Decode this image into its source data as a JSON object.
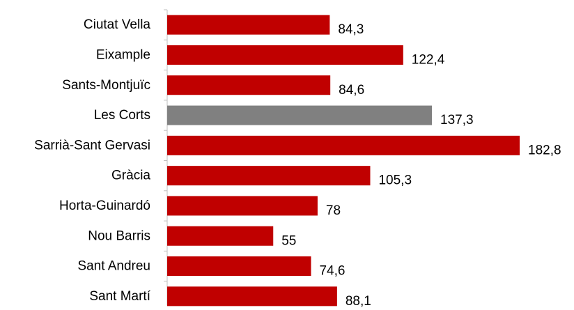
{
  "chart_data": {
    "type": "bar",
    "orientation": "horizontal",
    "categories": [
      "Ciutat Vella",
      "Eixample",
      "Sants-Montjuïc",
      "Les Corts",
      "Sarrià-Sant Gervasi",
      "Gràcia",
      "Horta-Guinardó",
      "Nou Barris",
      "Sant Andreu",
      "Sant Martí"
    ],
    "values": [
      84.3,
      122.4,
      84.6,
      137.3,
      182.8,
      105.3,
      78,
      55,
      74.6,
      88.1
    ],
    "value_labels": [
      "84,3",
      "122,4",
      "84,6",
      "137,3",
      "182,8",
      "105,3",
      "78",
      "55",
      "74,6",
      "88,1"
    ],
    "highlight_index": 3,
    "colors": {
      "bar": "#c00000",
      "highlight": "#808080",
      "axis": "#bfbfbf"
    },
    "title": "",
    "xlabel": "",
    "ylabel": "",
    "xlim": [
      0,
      190
    ],
    "grid": false,
    "legend": "none"
  }
}
